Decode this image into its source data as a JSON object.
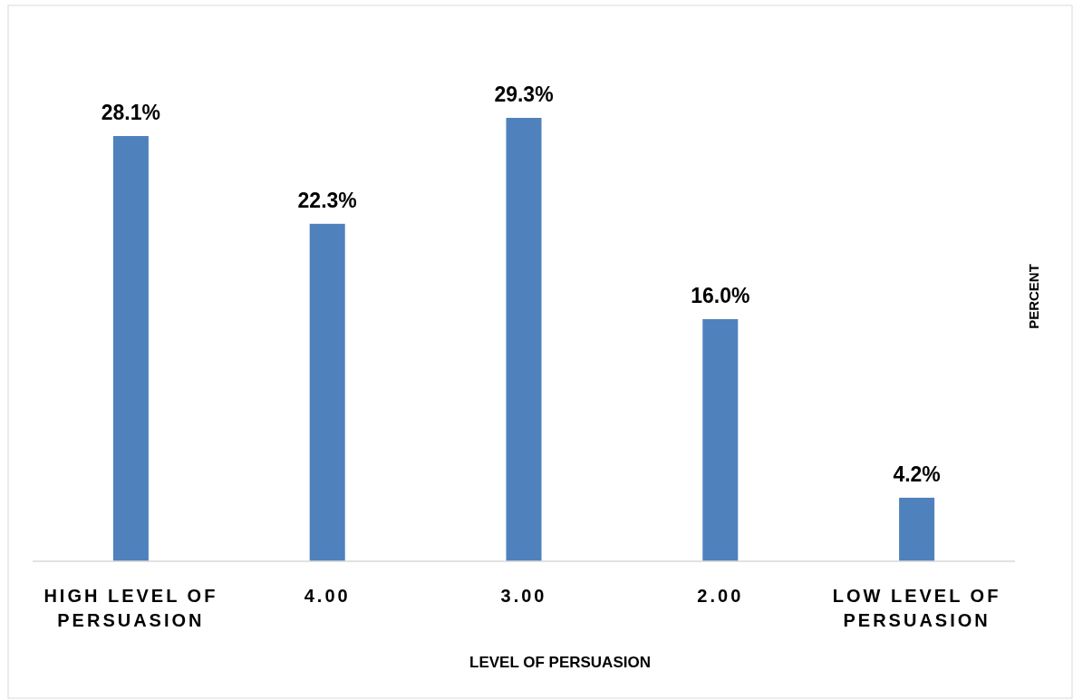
{
  "chart_data": {
    "type": "bar",
    "xlabel": "LEVEL OF PERSUASION",
    "ylabel": "PERCENT",
    "categories": [
      "HIGH LEVEL OF PERSUASION",
      "4.00",
      "3.00",
      "2.00",
      "LOW LEVEL OF PERSUASION"
    ],
    "values": [
      28.1,
      22.3,
      29.3,
      16.0,
      4.2
    ],
    "value_labels": [
      "28.1%",
      "22.3%",
      "29.3%",
      "16.0%",
      "4.2%"
    ],
    "color": "#4f81bd"
  }
}
